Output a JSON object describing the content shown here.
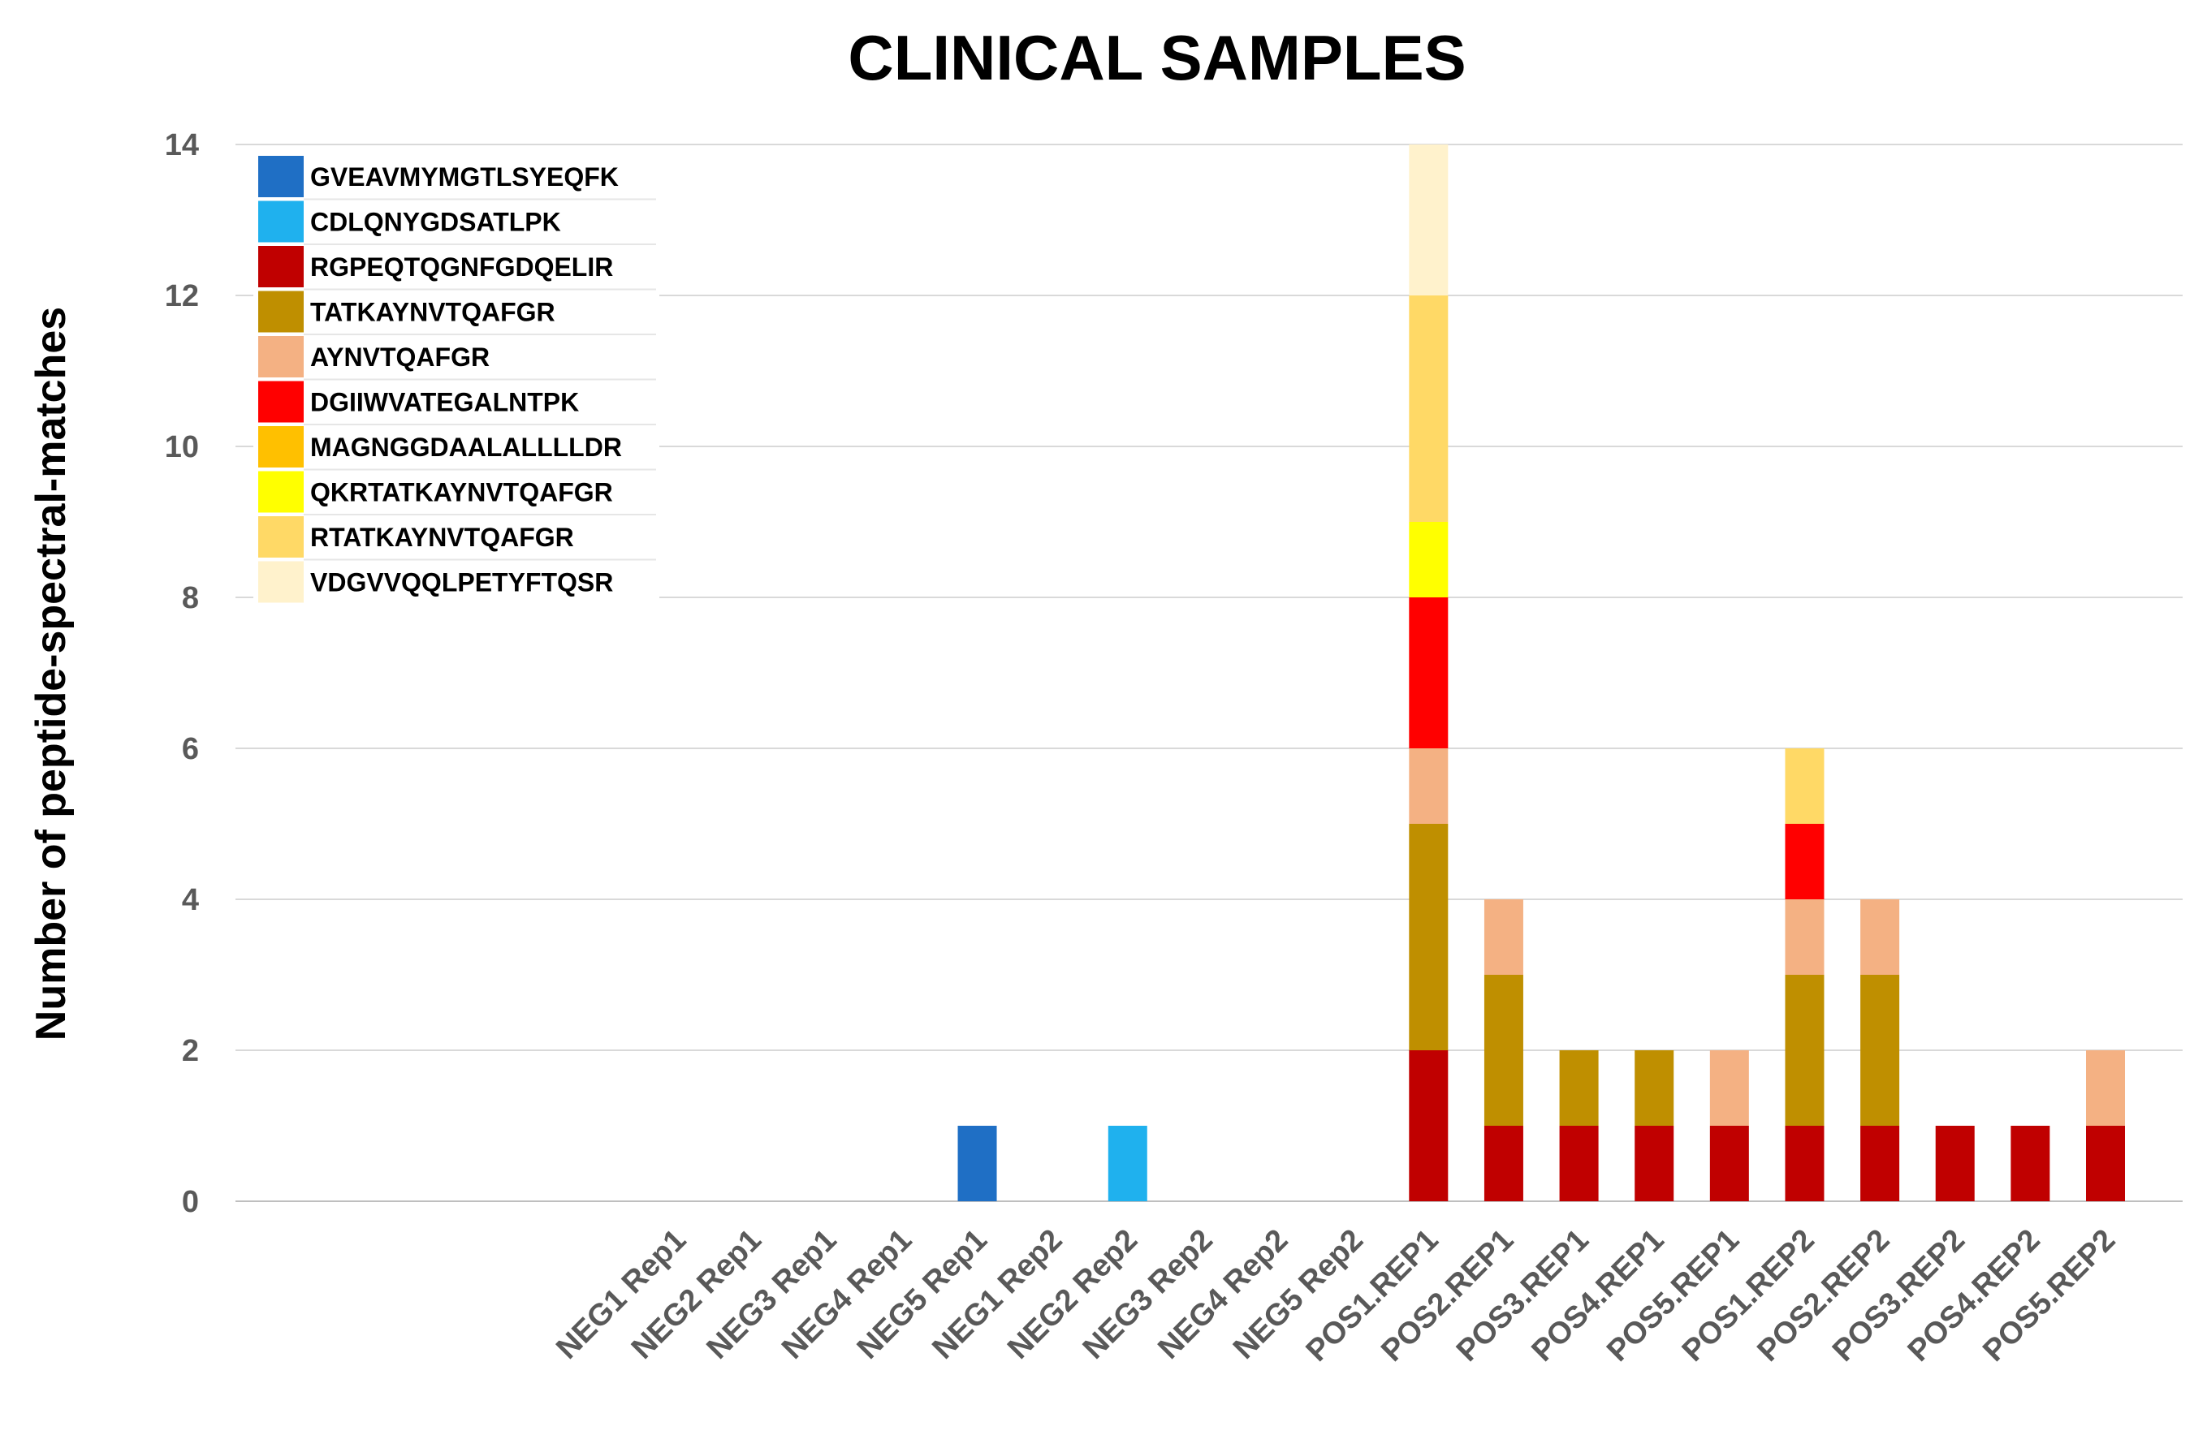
{
  "chart_data": {
    "type": "bar",
    "stacked": true,
    "title": "CLINICAL SAMPLES",
    "xlabel": "",
    "ylabel": "Number of peptide-spectral-matches",
    "ylim": [
      0,
      14
    ],
    "yticks": [
      "0",
      "2",
      "4",
      "6",
      "8",
      "10",
      "12",
      "14"
    ],
    "grid": true,
    "legend_position": "top-left",
    "categories": [
      "NEG1 Rep1",
      "NEG2 Rep1",
      "NEG3 Rep1",
      "NEG4 Rep1",
      "NEG5 Rep1",
      "NEG1 Rep2",
      "NEG2 Rep2",
      "NEG3 Rep2",
      "NEG4 Rep2",
      "NEG5 Rep2",
      "POS1.REP1",
      "POS2.REP1",
      "POS3.REP1",
      "POS4.REP1",
      "POS5.REP1",
      "POS1.REP2",
      "POS2.REP2",
      "POS3.REP2",
      "POS4.REP2",
      "POS5.REP2"
    ],
    "series": [
      {
        "name": "GVEAVMYMGTLSYEQFK",
        "color": "#1F6FC5",
        "values": [
          0,
          0,
          0,
          0,
          1,
          0,
          0,
          0,
          0,
          0,
          0,
          0,
          0,
          0,
          0,
          0,
          0,
          0,
          0,
          0
        ]
      },
      {
        "name": "CDLQNYGDSATLPK",
        "color": "#1FB1EE",
        "values": [
          0,
          0,
          0,
          0,
          0,
          0,
          1,
          0,
          0,
          0,
          0,
          0,
          0,
          0,
          0,
          0,
          0,
          0,
          0,
          0
        ]
      },
      {
        "name": "RGPEQTQGNFGDQELIR",
        "color": "#C00000",
        "values": [
          0,
          0,
          0,
          0,
          0,
          0,
          0,
          0,
          0,
          0,
          2,
          1,
          1,
          1,
          1,
          1,
          1,
          1,
          1,
          1
        ]
      },
      {
        "name": "TATKAYNVTQAFGR",
        "color": "#BF8F00",
        "values": [
          0,
          0,
          0,
          0,
          0,
          0,
          0,
          0,
          0,
          0,
          3,
          2,
          1,
          1,
          0,
          2,
          2,
          0,
          0,
          0
        ]
      },
      {
        "name": "AYNVTQAFGR",
        "color": "#F4B183",
        "values": [
          0,
          0,
          0,
          0,
          0,
          0,
          0,
          0,
          0,
          0,
          1,
          1,
          0,
          0,
          1,
          1,
          1,
          0,
          0,
          1
        ]
      },
      {
        "name": "DGIIWVATEGALNTPK",
        "color": "#FF0000",
        "values": [
          0,
          0,
          0,
          0,
          0,
          0,
          0,
          0,
          0,
          0,
          2,
          0,
          0,
          0,
          0,
          1,
          0,
          0,
          0,
          0
        ]
      },
      {
        "name": "MAGNGGDAALALLLLDR",
        "color": "#FFC000",
        "values": [
          0,
          0,
          0,
          0,
          0,
          0,
          0,
          0,
          0,
          0,
          0,
          0,
          0,
          0,
          0,
          0,
          0,
          0,
          0,
          0
        ]
      },
      {
        "name": "QKRTATKAYNVTQAFGR",
        "color": "#FFFF00",
        "values": [
          0,
          0,
          0,
          0,
          0,
          0,
          0,
          0,
          0,
          0,
          1,
          0,
          0,
          0,
          0,
          0,
          0,
          0,
          0,
          0
        ]
      },
      {
        "name": "RTATKAYNVTQAFGR",
        "color": "#FFD966",
        "values": [
          0,
          0,
          0,
          0,
          0,
          0,
          0,
          0,
          0,
          0,
          3,
          0,
          0,
          0,
          0,
          1,
          0,
          0,
          0,
          0
        ]
      },
      {
        "name": "VDGVVQQLPETYFTQSR",
        "color": "#FFE699",
        "values": [
          0,
          0,
          0,
          0,
          0,
          0,
          0,
          0,
          0,
          0,
          2,
          0,
          0,
          0,
          0,
          0,
          0,
          0,
          0,
          0
        ]
      }
    ],
    "series_fill_override": {
      "VDGVVQQLPETYFTQSR": "#FFF2CC"
    }
  }
}
